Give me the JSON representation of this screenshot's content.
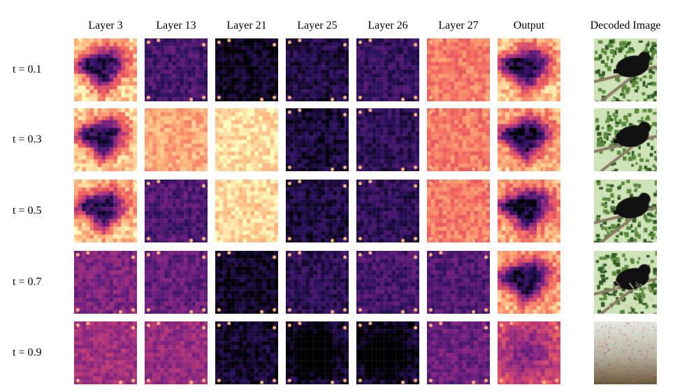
{
  "columns": [
    "Layer 3",
    "Layer 13",
    "Layer 21",
    "Layer 25",
    "Layer 26",
    "Layer 27",
    "Output",
    "Decoded Image"
  ],
  "rows": [
    "t = 0.1",
    "t = 0.3",
    "t = 0.5",
    "t = 0.7",
    "t = 0.9"
  ],
  "colors": {
    "colormap_stops": [
      "#000004",
      "#2c115f",
      "#721f81",
      "#b73779",
      "#f1605d",
      "#feb078",
      "#fcfdbf"
    ],
    "photo_sky": "#cfe3b8",
    "photo_leaves": "#5a8a3c",
    "photo_branch": "#8a7a66",
    "photo_animal": "#111111"
  },
  "heatmap_levels": {
    "t = 0.1": {
      "Layer 3": 0.65,
      "Layer 13": 0.22,
      "Layer 21": 0.05,
      "Layer 25": 0.12,
      "Layer 26": 0.18,
      "Layer 27": 0.72,
      "Output": 0.62
    },
    "t = 0.3": {
      "Layer 3": 0.66,
      "Layer 13": 0.82,
      "Layer 21": 0.93,
      "Layer 25": 0.1,
      "Layer 26": 0.16,
      "Layer 27": 0.72,
      "Output": 0.6
    },
    "t = 0.5": {
      "Layer 3": 0.65,
      "Layer 13": 0.25,
      "Layer 21": 0.92,
      "Layer 25": 0.1,
      "Layer 26": 0.16,
      "Layer 27": 0.72,
      "Output": 0.58
    },
    "t = 0.7": {
      "Layer 3": 0.36,
      "Layer 13": 0.3,
      "Layer 21": 0.06,
      "Layer 25": 0.15,
      "Layer 26": 0.22,
      "Layer 27": 0.25,
      "Output": 0.58
    },
    "t = 0.9": {
      "Layer 3": 0.45,
      "Layer 13": 0.42,
      "Layer 21": 0.07,
      "Layer 25": 0.1,
      "Layer 26": 0.1,
      "Layer 27": 0.32,
      "Output": 0.6
    }
  }
}
